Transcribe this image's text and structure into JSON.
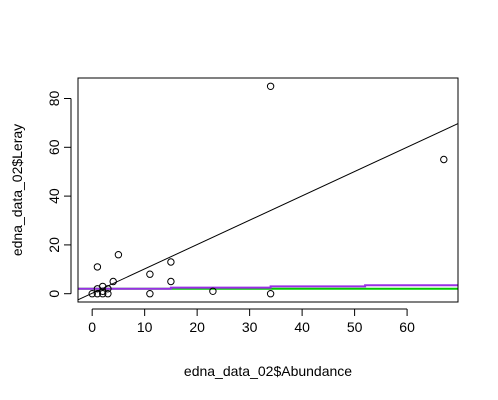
{
  "chart_data": {
    "type": "scatter",
    "xlabel": "edna_data_02$Abundance",
    "ylabel": "edna_data_02$Leray",
    "xlim": [
      -2.7,
      69.7
    ],
    "ylim": [
      -3.4,
      88.4
    ],
    "xticks": [
      0,
      10,
      20,
      30,
      40,
      50,
      60
    ],
    "yticks": [
      0,
      20,
      40,
      60,
      80
    ],
    "box": true,
    "grid": false,
    "points": [
      {
        "x": 0,
        "y": 0
      },
      {
        "x": 1,
        "y": 0
      },
      {
        "x": 1,
        "y": 2
      },
      {
        "x": 1,
        "y": 11
      },
      {
        "x": 2,
        "y": 0
      },
      {
        "x": 2,
        "y": 1
      },
      {
        "x": 2,
        "y": 3
      },
      {
        "x": 3,
        "y": 0
      },
      {
        "x": 3,
        "y": 2
      },
      {
        "x": 4,
        "y": 5
      },
      {
        "x": 5,
        "y": 16
      },
      {
        "x": 11,
        "y": 0
      },
      {
        "x": 11,
        "y": 8
      },
      {
        "x": 15,
        "y": 5
      },
      {
        "x": 15,
        "y": 13
      },
      {
        "x": 23,
        "y": 1
      },
      {
        "x": 34,
        "y": 0
      },
      {
        "x": 34,
        "y": 85
      },
      {
        "x": 67,
        "y": 55
      }
    ],
    "lines": [
      {
        "color": "#000000",
        "width": 1,
        "x": [
          -2.7,
          69.7
        ],
        "y": [
          -2.5,
          69.7
        ]
      },
      {
        "color": "#00cc00",
        "width": 2,
        "x": [
          -2.7,
          69.7
        ],
        "y": [
          2.0,
          2.0
        ]
      },
      {
        "color": "#9a2ee6",
        "width": 2,
        "x": [
          -2.7,
          15,
          15,
          34,
          34,
          52,
          52,
          69.7
        ],
        "y": [
          2.0,
          2.0,
          2.5,
          2.5,
          3.0,
          3.0,
          3.5,
          3.5
        ]
      }
    ],
    "colors": {
      "points": "#000000",
      "regression": "#000000",
      "green_line": "#00cc00",
      "purple_line": "#9a2ee6"
    }
  }
}
